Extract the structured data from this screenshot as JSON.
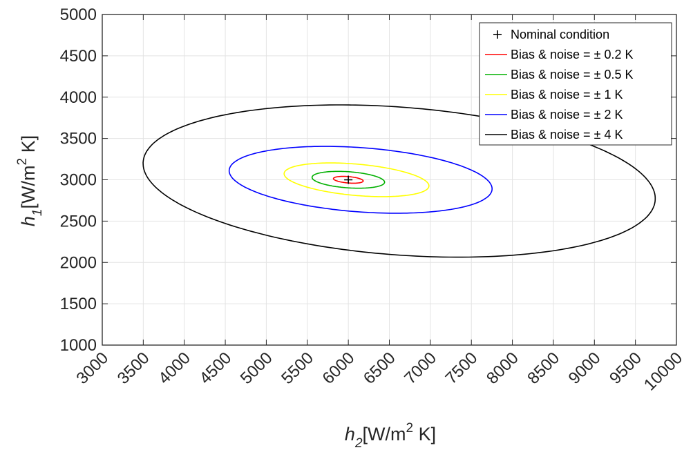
{
  "chart_data": {
    "type": "line",
    "xlabel": {
      "symbol": "h",
      "subscript": "2",
      "units_pre": "[W/m",
      "units_sup": "2",
      "units_post": " K]"
    },
    "ylabel": {
      "symbol": "h",
      "subscript": "1",
      "units_pre": "[W/m",
      "units_sup": "2",
      "units_post": " K]"
    },
    "xlim": [
      3000,
      10000
    ],
    "ylim": [
      1000,
      5000
    ],
    "xticks": [
      3000,
      3500,
      4000,
      4500,
      5000,
      5500,
      6000,
      6500,
      7000,
      7500,
      8000,
      8500,
      9000,
      9500,
      10000
    ],
    "yticks": [
      1000,
      1500,
      2000,
      2500,
      3000,
      3500,
      4000,
      4500,
      5000
    ],
    "grid": true,
    "legend_position": "top-right",
    "nominal": {
      "name": "Nominal condition",
      "x": 6000,
      "y": 3000,
      "marker": "+",
      "color": "#000000"
    },
    "series": [
      {
        "name": "Bias & noise = ± 0.2 K",
        "color": "#ff0000",
        "center": [
          6000,
          3000
        ],
        "x_extent": [
          5820,
          6180
        ],
        "y_extent": [
          2960,
          3040
        ],
        "leftmost_y": 3010,
        "rightmost_y": 2990,
        "top_x": 5980,
        "bottom_x": 6020
      },
      {
        "name": "Bias & noise = ± 0.5 K",
        "color": "#00b000",
        "center": [
          6000,
          3000
        ],
        "x_extent": [
          5560,
          6440
        ],
        "y_extent": [
          2900,
          3100
        ],
        "leftmost_y": 3020,
        "rightmost_y": 2980,
        "top_x": 5960,
        "bottom_x": 6040
      },
      {
        "name": "Bias & noise = ± 1 K",
        "color": "#ffff00",
        "center": [
          6100,
          3000
        ],
        "x_extent": [
          5230,
          6970
        ],
        "y_extent": [
          2800,
          3200
        ],
        "leftmost_y": 3040,
        "rightmost_y": 2960,
        "top_x": 5950,
        "bottom_x": 6250
      },
      {
        "name": "Bias & noise = ± 2 K",
        "color": "#0000ff",
        "center": [
          6150,
          3000
        ],
        "x_extent": [
          4560,
          7740
        ],
        "y_extent": [
          2600,
          3400
        ],
        "leftmost_y": 3060,
        "rightmost_y": 2940,
        "top_x": 5950,
        "bottom_x": 6350
      },
      {
        "name": "Bias & noise = ± 4 K",
        "color": "#000000",
        "center": [
          6620,
          2985
        ],
        "x_extent": [
          3520,
          9720
        ],
        "y_extent": [
          2070,
          3900
        ],
        "leftmost_y": 3090,
        "rightmost_y": 2880,
        "top_x": 6270,
        "bottom_x": 7010
      }
    ]
  }
}
